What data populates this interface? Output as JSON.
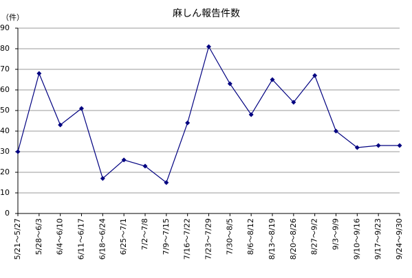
{
  "chart_data": {
    "type": "line",
    "title": "麻しん報告件数",
    "y_label": "（件）",
    "categories": [
      "5/21～5/27",
      "5/28～6/3",
      "6/4～6/10",
      "6/11～6/17",
      "6/18～6/24",
      "6/25～7/1",
      "7/2～7/8",
      "7/9～7/15",
      "7/16～7/22",
      "7/23～7/29",
      "7/30～8/5",
      "8/6～8/12",
      "8/13～8/19",
      "8/20～8/26",
      "8/27～9/2",
      "9/3～9/9",
      "9/10～9/16",
      "9/17～9/23",
      "9/24～9/30"
    ],
    "series": [
      {
        "color": "#000080",
        "values": [
          30,
          68,
          43,
          51,
          17,
          26,
          23,
          15,
          44,
          81,
          63,
          48,
          65,
          54,
          67,
          40,
          32,
          33,
          33
        ]
      }
    ],
    "ylim": [
      0,
      90
    ],
    "yticks": [
      0,
      10,
      20,
      30,
      40,
      50,
      60,
      70,
      80,
      90
    ],
    "grid": true
  }
}
